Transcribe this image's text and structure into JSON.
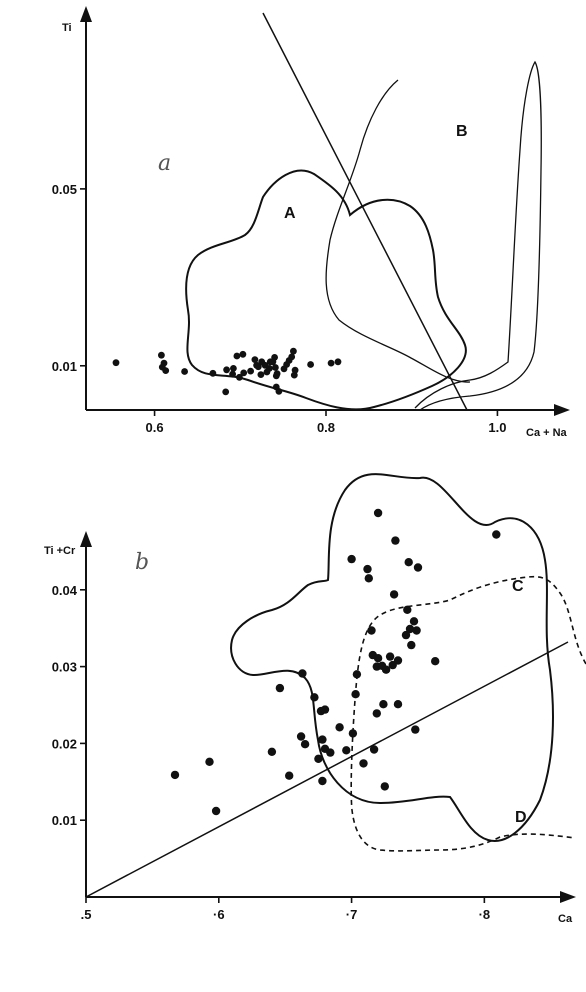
{
  "chart_data": [
    {
      "type": "scatter",
      "panel_label": "a",
      "title": "",
      "xlabel": "Ca + Na",
      "ylabel": "Ti",
      "xlim": [
        0.52,
        1.08
      ],
      "ylim": [
        0.0,
        0.09
      ],
      "x_ticks": [
        {
          "value": 0.6,
          "label": "0.6"
        },
        {
          "value": 0.8,
          "label": "0.8"
        },
        {
          "value": 1.0,
          "label": "1.0"
        }
      ],
      "y_ticks": [
        {
          "value": 0.01,
          "label": "0.01"
        },
        {
          "value": 0.05,
          "label": "0.05"
        }
      ],
      "points": [
        [
          0.555,
          0.0107
        ],
        [
          0.608,
          0.0124
        ],
        [
          0.609,
          0.0097
        ],
        [
          0.611,
          0.0106
        ],
        [
          0.613,
          0.0089
        ],
        [
          0.635,
          0.0087
        ],
        [
          0.668,
          0.0083
        ],
        [
          0.683,
          0.0041
        ],
        [
          0.684,
          0.0091
        ],
        [
          0.691,
          0.0081
        ],
        [
          0.692,
          0.0094
        ],
        [
          0.696,
          0.0122
        ],
        [
          0.699,
          0.0074
        ],
        [
          0.703,
          0.0126
        ],
        [
          0.704,
          0.0084
        ],
        [
          0.712,
          0.0088
        ],
        [
          0.717,
          0.0114
        ],
        [
          0.719,
          0.0101
        ],
        [
          0.721,
          0.0098
        ],
        [
          0.724,
          0.008
        ],
        [
          0.725,
          0.0109
        ],
        [
          0.729,
          0.0101
        ],
        [
          0.731,
          0.0086
        ],
        [
          0.734,
          0.0094
        ],
        [
          0.735,
          0.0109
        ],
        [
          0.738,
          0.0109
        ],
        [
          0.74,
          0.0119
        ],
        [
          0.741,
          0.0096
        ],
        [
          0.742,
          0.0077
        ],
        [
          0.742,
          0.0052
        ],
        [
          0.743,
          0.0082
        ],
        [
          0.745,
          0.0042
        ],
        [
          0.751,
          0.0093
        ],
        [
          0.754,
          0.0103
        ],
        [
          0.757,
          0.0112
        ],
        [
          0.76,
          0.012
        ],
        [
          0.762,
          0.0133
        ],
        [
          0.763,
          0.0079
        ],
        [
          0.764,
          0.009
        ],
        [
          0.782,
          0.0103
        ],
        [
          0.806,
          0.0106
        ],
        [
          0.814,
          0.0109
        ]
      ],
      "region_labels": [
        "A",
        "B"
      ]
    },
    {
      "type": "scatter",
      "panel_label": "b",
      "title": "",
      "xlabel": "Ca",
      "ylabel": "Ti +Cr",
      "xlim": [
        0.5,
        0.866
      ],
      "ylim": [
        0.0,
        0.05
      ],
      "x_ticks": [
        {
          "value": 0.5,
          "label": ".5"
        },
        {
          "value": 0.6,
          "label": "·6"
        },
        {
          "value": 0.7,
          "label": "·7"
        },
        {
          "value": 0.8,
          "label": "·8"
        }
      ],
      "y_ticks": [
        {
          "value": 0.01,
          "label": "0.01"
        },
        {
          "value": 0.02,
          "label": "0.02"
        },
        {
          "value": 0.03,
          "label": "0.03"
        },
        {
          "value": 0.04,
          "label": "0.04"
        }
      ],
      "points": [
        [
          0.567,
          0.0159
        ],
        [
          0.593,
          0.0176
        ],
        [
          0.598,
          0.0112
        ],
        [
          0.64,
          0.0189
        ],
        [
          0.646,
          0.0272
        ],
        [
          0.653,
          0.0158
        ],
        [
          0.662,
          0.0209
        ],
        [
          0.663,
          0.0291
        ],
        [
          0.665,
          0.0199
        ],
        [
          0.672,
          0.026
        ],
        [
          0.675,
          0.018
        ],
        [
          0.677,
          0.0242
        ],
        [
          0.678,
          0.0151
        ],
        [
          0.678,
          0.0205
        ],
        [
          0.68,
          0.0193
        ],
        [
          0.68,
          0.0244
        ],
        [
          0.684,
          0.0188
        ],
        [
          0.691,
          0.0221
        ],
        [
          0.696,
          0.0191
        ],
        [
          0.7,
          0.044
        ],
        [
          0.701,
          0.0213
        ],
        [
          0.703,
          0.0264
        ],
        [
          0.704,
          0.029
        ],
        [
          0.709,
          0.0174
        ],
        [
          0.712,
          0.0427
        ],
        [
          0.713,
          0.0415
        ],
        [
          0.715,
          0.0347
        ],
        [
          0.716,
          0.0315
        ],
        [
          0.717,
          0.0192
        ],
        [
          0.719,
          0.0239
        ],
        [
          0.719,
          0.03
        ],
        [
          0.72,
          0.05
        ],
        [
          0.72,
          0.0311
        ],
        [
          0.723,
          0.0301
        ],
        [
          0.724,
          0.0251
        ],
        [
          0.725,
          0.0144
        ],
        [
          0.726,
          0.0296
        ],
        [
          0.729,
          0.0313
        ],
        [
          0.731,
          0.0302
        ],
        [
          0.732,
          0.0394
        ],
        [
          0.733,
          0.0464
        ],
        [
          0.735,
          0.0251
        ],
        [
          0.735,
          0.0308
        ],
        [
          0.741,
          0.0341
        ],
        [
          0.742,
          0.0374
        ],
        [
          0.743,
          0.0436
        ],
        [
          0.744,
          0.0349
        ],
        [
          0.745,
          0.0328
        ],
        [
          0.747,
          0.0359
        ],
        [
          0.748,
          0.0218
        ],
        [
          0.749,
          0.0347
        ],
        [
          0.75,
          0.0429
        ],
        [
          0.763,
          0.0307
        ],
        [
          0.809,
          0.0472
        ]
      ],
      "region_labels": [
        "C",
        "D"
      ]
    }
  ]
}
